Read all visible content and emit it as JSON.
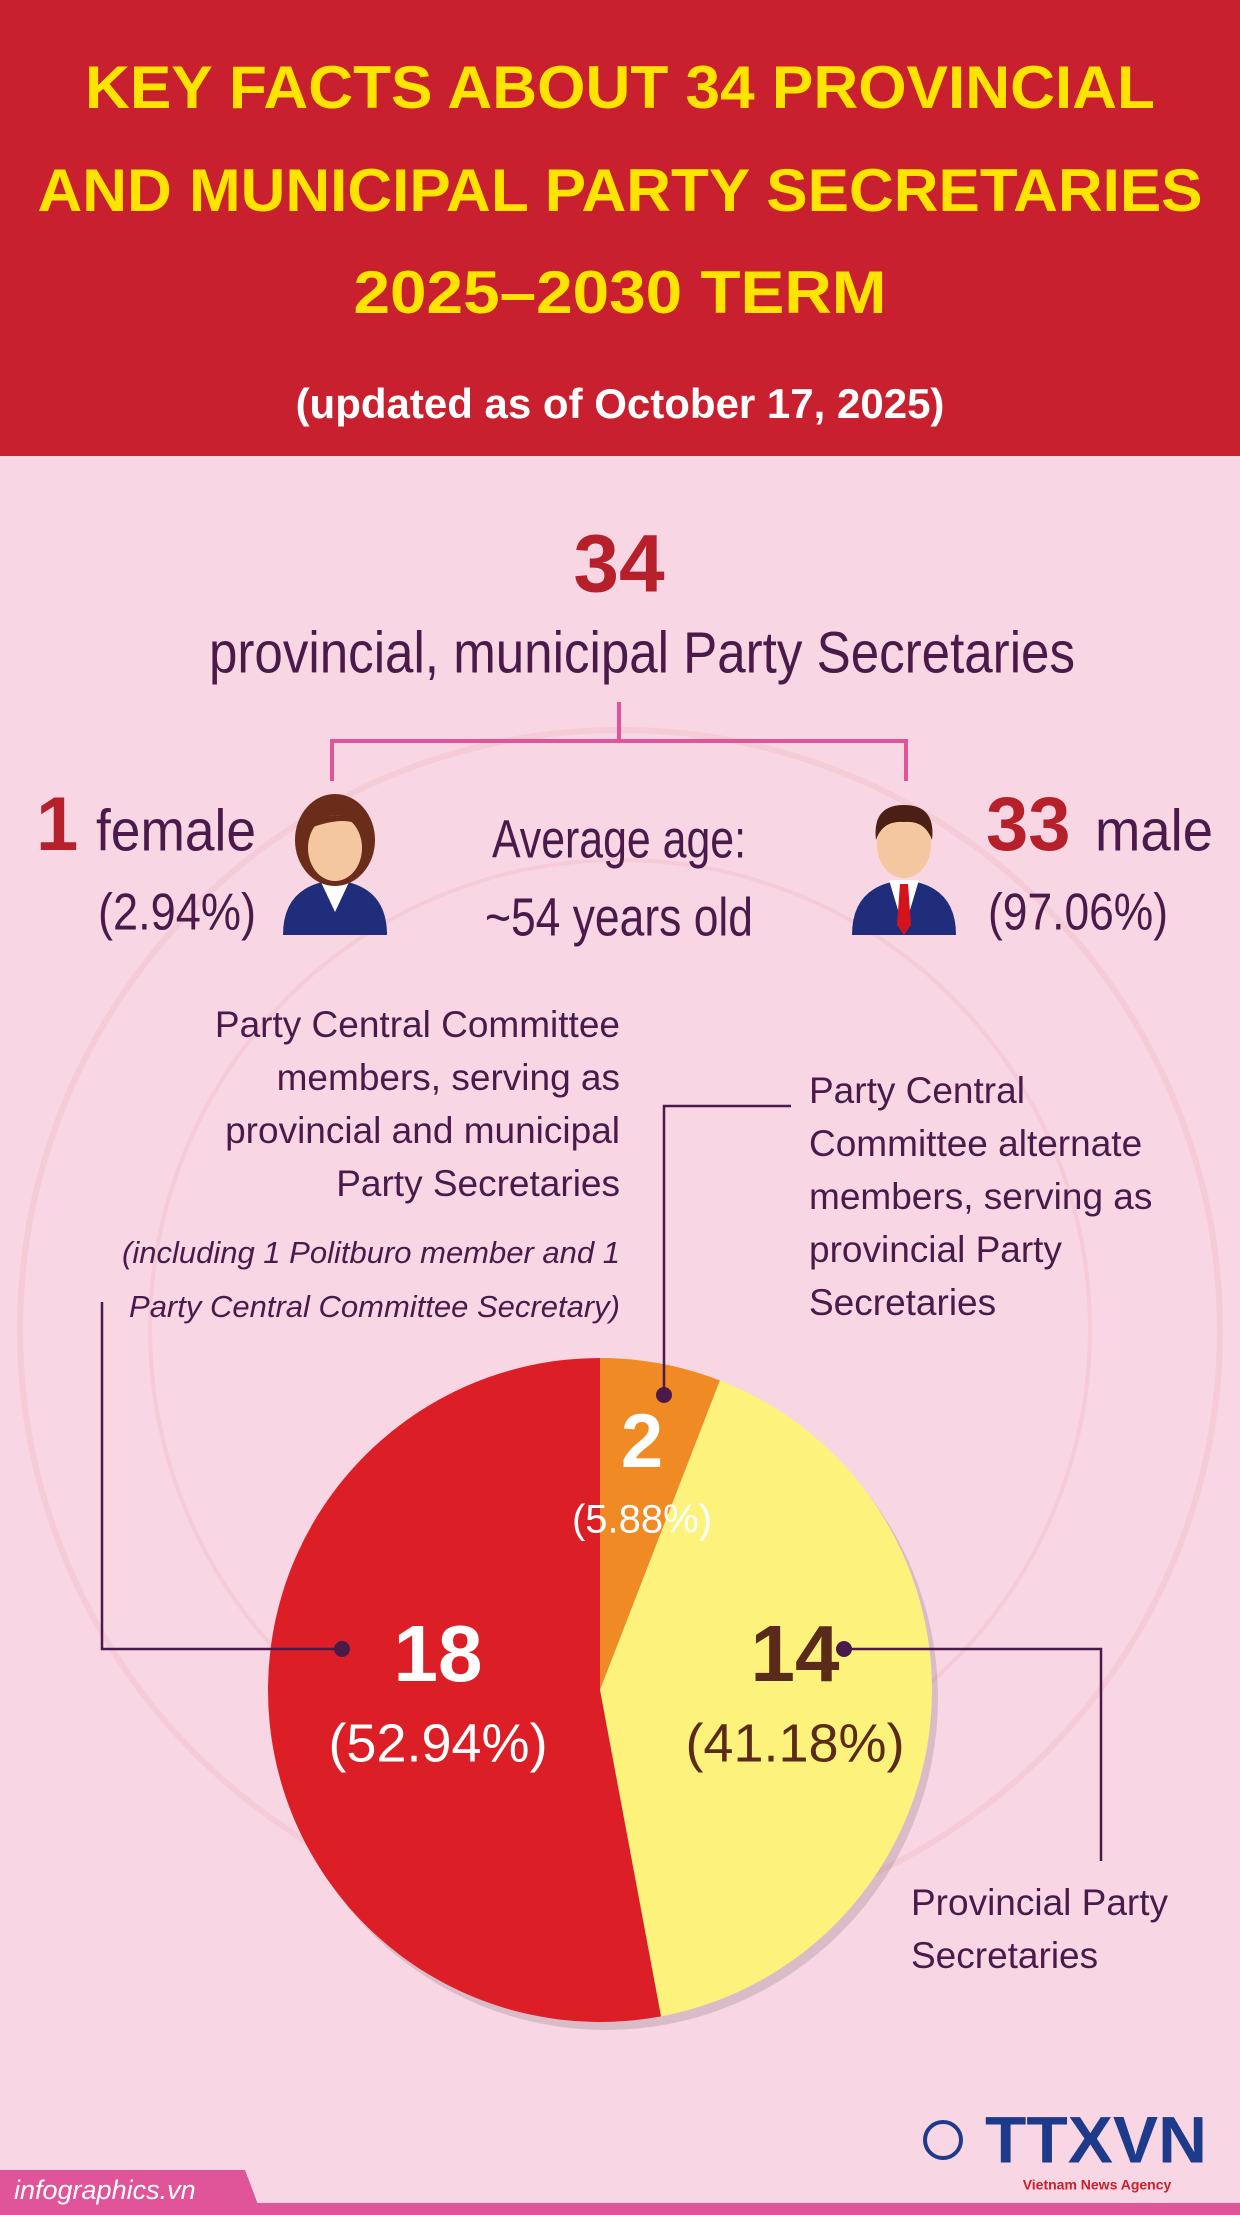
{
  "header": {
    "title_lines": [
      "KEY FACTS ABOUT 34 PROVINCIAL",
      "AND MUNICIPAL PARTY SECRETARIES",
      "2025–2030 TERM"
    ],
    "subtitle": "(updated as of October 17, 2025)"
  },
  "total": {
    "value": 34,
    "label": "provincial, municipal Party Secretaries"
  },
  "female": {
    "value": 1,
    "label": "female",
    "percent": "(2.94%)"
  },
  "male": {
    "value": 33,
    "label": "male",
    "percent": "(97.06%)"
  },
  "average_age": {
    "label": "Average age:",
    "value": "~54 years old"
  },
  "chart_data": {
    "type": "pie",
    "categories": [
      "Party Central Committee alternate members, serving as provincial Party Secretaries",
      "Provincial Party Secretaries",
      "Party Central Committee members, serving as provincial and municipal Party Secretaries"
    ],
    "note": "(including 1 Politburo member and 1 Party Central Committee Secretary)",
    "values": [
      2,
      14,
      18
    ],
    "percent_labels": [
      "(5.88%)",
      "(41.18%)",
      "(52.94%)"
    ],
    "colors": [
      "#f08a24",
      "#fdf27c",
      "#dc1f26"
    ]
  },
  "footer": {
    "source": "infographics.vn",
    "agency": "TTXVN",
    "agency_sub": "Vietnam News Agency"
  }
}
